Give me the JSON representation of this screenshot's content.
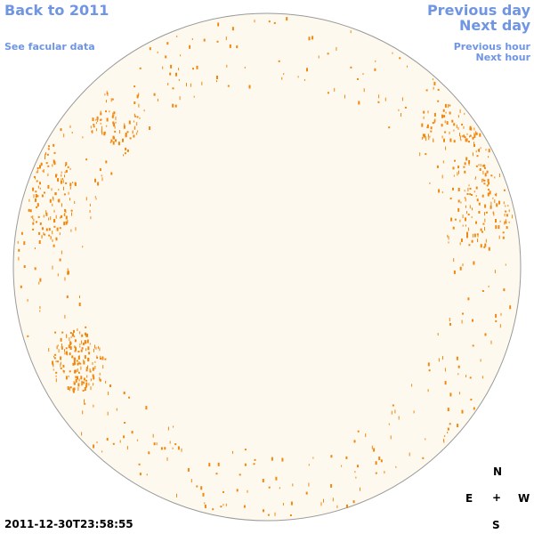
{
  "nav": {
    "back_label": "Back to 2011",
    "facular_label": "See facular data",
    "prev_day_label": "Previous day",
    "next_day_label": "Next day",
    "prev_hour_label": "Previous hour",
    "next_hour_label": "Next hour"
  },
  "compass": {
    "north": "N",
    "south": "S",
    "east": "E",
    "west": "W",
    "center": "+"
  },
  "timestamp": "2011-12-30T23:58:55",
  "colors": {
    "link": "#6f95e3",
    "disk_fill": "#fef9ee",
    "disk_edge": "#9a9a9a",
    "faculae": "#f0880f"
  }
}
